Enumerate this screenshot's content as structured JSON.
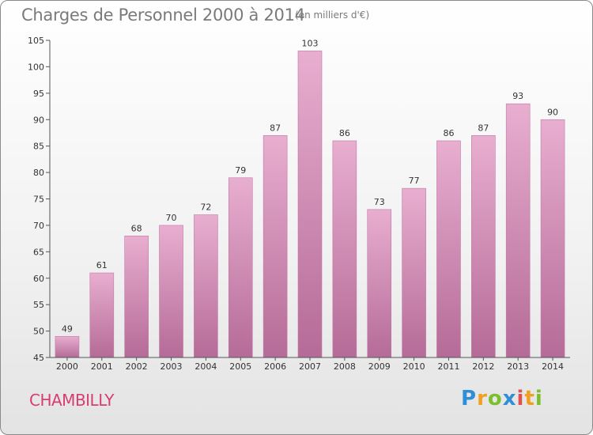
{
  "chart_data": {
    "type": "bar",
    "title": "Charges de Personnel 2000 à 2014",
    "subtitle": "(en milliers d'€)",
    "categories": [
      "2000",
      "2001",
      "2002",
      "2003",
      "2004",
      "2005",
      "2006",
      "2007",
      "2008",
      "2009",
      "2010",
      "2011",
      "2012",
      "2013",
      "2014"
    ],
    "values": [
      49,
      61,
      68,
      70,
      72,
      79,
      87,
      103,
      86,
      73,
      77,
      86,
      87,
      93,
      90
    ],
    "ylim": [
      45,
      105
    ],
    "yticks": [
      45,
      50,
      55,
      60,
      65,
      70,
      75,
      80,
      85,
      90,
      95,
      100,
      105
    ],
    "grid": false,
    "colors": {
      "bar_top": "#e8aed0",
      "bar_bottom": "#b56b97",
      "bar_stroke": "#c07aa5",
      "axis": "#555555"
    }
  },
  "commune": "CHAMBILLY",
  "logo": {
    "letters": [
      "P",
      "r",
      "o",
      "x",
      "i",
      "t",
      "i"
    ]
  }
}
